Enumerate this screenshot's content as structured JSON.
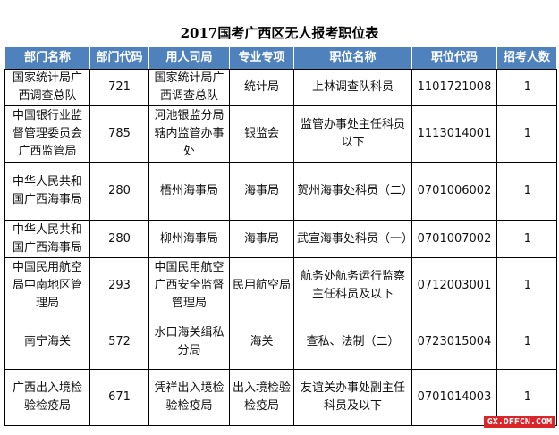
{
  "title": "2017国考广西区无人报考职位表",
  "headers": [
    "部门名称",
    "部门代码",
    "用人司局",
    "专业专项",
    "职位名称",
    "职位代码",
    "招考人数"
  ],
  "rows": [
    [
      "国家统计局广西调查总队",
      "721",
      "国家统计局广西调查总队",
      "统计局",
      "上林调查队科员",
      "1101721008",
      "1"
    ],
    [
      "中国银行业监督管理委员会广西监管局",
      "785",
      "河池银监分局辖内监管办事处",
      "银监会",
      "监管办事处主任科员以下",
      "1113014001",
      "1"
    ],
    [
      "中华人民共和国广西海事局",
      "280",
      "梧州海事局",
      "海事局",
      "贺州海事处科员（二）",
      "0701006002",
      "1"
    ],
    [
      "中华人民共和国广西海事局",
      "280",
      "柳州海事局",
      "海事局",
      "武宣海事处科员（一）",
      "0701007002",
      "1"
    ],
    [
      "中国民用航空局中南地区管理局",
      "293",
      "中国民用航空广西安全监督管理局",
      "民用航空局",
      "航务处航务运行监察主任科员及以下",
      "0712003001",
      "1"
    ],
    [
      "南宁海关",
      "572",
      "水口海关缉私分局",
      "海关",
      "查私、法制（二）",
      "0723015004",
      "1"
    ],
    [
      "广西出入境检验检疫局",
      "671",
      "凭祥出入境检验检疫局",
      "出入境检验检疫局",
      "友谊关办事处副主任科员及以下",
      "0701014003",
      "1"
    ]
  ],
  "watermark": "GX.OFFCN.COM",
  "colors": {
    "header_bg": "#4f81bd",
    "watermark_bg": "#d9262b"
  }
}
